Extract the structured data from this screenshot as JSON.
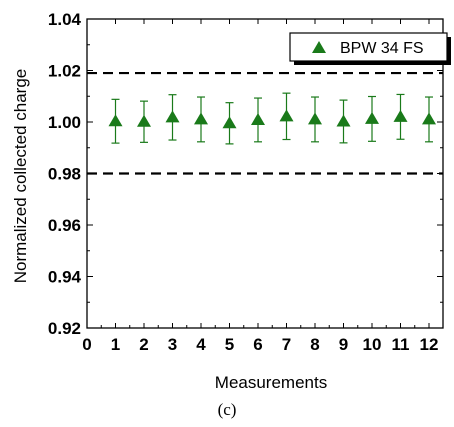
{
  "chart_data": {
    "type": "scatter",
    "xlabel": "Measurements",
    "ylabel": "Normalized collected charge",
    "xlim": [
      0,
      12
    ],
    "ylim": [
      0.92,
      1.04
    ],
    "x_ticks": [
      0,
      1,
      2,
      3,
      4,
      5,
      6,
      7,
      8,
      9,
      10,
      11,
      12
    ],
    "y_ticks": [
      0.92,
      0.94,
      0.96,
      0.98,
      1.0,
      1.02,
      1.04
    ],
    "y_tick_labels": [
      "0.92",
      "0.94",
      "0.96",
      "0.98",
      "1.00",
      "1.02",
      "1.04"
    ],
    "grid": false,
    "legend_position": "top-right",
    "series": [
      {
        "name": "BPW 34 FS",
        "marker": "triangle",
        "color": "#1a7a1a",
        "x": [
          1,
          2,
          3,
          4,
          5,
          6,
          7,
          8,
          9,
          10,
          11,
          12
        ],
        "y": [
          1.0003,
          1.0001,
          1.0018,
          1.001,
          0.9995,
          1.0008,
          1.0022,
          1.001,
          1.0002,
          1.0012,
          1.002,
          1.001
        ],
        "error": [
          0.0085,
          0.008,
          0.0088,
          0.0087,
          0.008,
          0.0085,
          0.009,
          0.0087,
          0.0083,
          0.0087,
          0.0087,
          0.0087
        ]
      }
    ],
    "reference_lines": [
      {
        "y": 1.019,
        "style": "dashed"
      },
      {
        "y": 0.98,
        "style": "dashed"
      }
    ]
  },
  "caption": "(c)"
}
